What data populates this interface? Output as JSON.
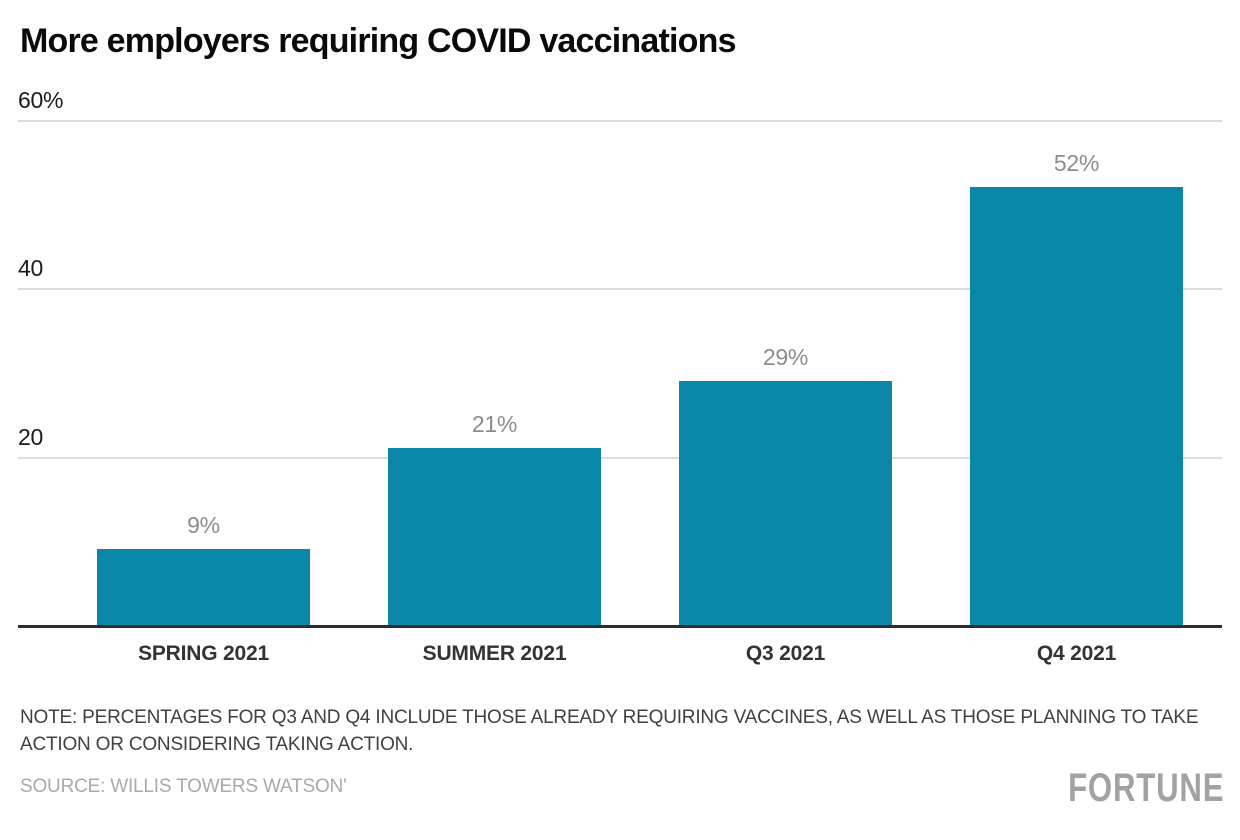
{
  "header": {
    "title": "More employers requiring COVID vaccinations"
  },
  "chart_data": {
    "type": "bar",
    "title": "More employers requiring COVID vaccinations",
    "categories": [
      "SPRING 2021",
      "SUMMER 2021",
      "Q3 2021",
      "Q4 2021"
    ],
    "values": [
      9,
      21,
      29,
      52
    ],
    "value_labels": [
      "9%",
      "21%",
      "29%",
      "52%"
    ],
    "xlabel": "",
    "ylabel": "",
    "ylim": [
      0,
      60
    ],
    "yticks": [
      {
        "value": 60,
        "label": "60%"
      },
      {
        "value": 40,
        "label": "40"
      },
      {
        "value": 20,
        "label": "20"
      }
    ],
    "grid": true,
    "legend": "none",
    "bar_color": "#0A87A8",
    "value_label_color": "#8C8C8C",
    "gridline_color": "#DCDCDC",
    "axis_line_color": "#2D2D2D"
  },
  "footer": {
    "note": "NOTE: PERCENTAGES FOR Q3 AND Q4 INCLUDE THOSE ALREADY REQUIRING VACCINES, AS WELL AS THOSE PLANNING TO TAKE ACTION OR CONSIDERING TAKING ACTION.",
    "source": "SOURCE: WILLIS TOWERS WATSON'",
    "brand": "FORTUNE"
  }
}
